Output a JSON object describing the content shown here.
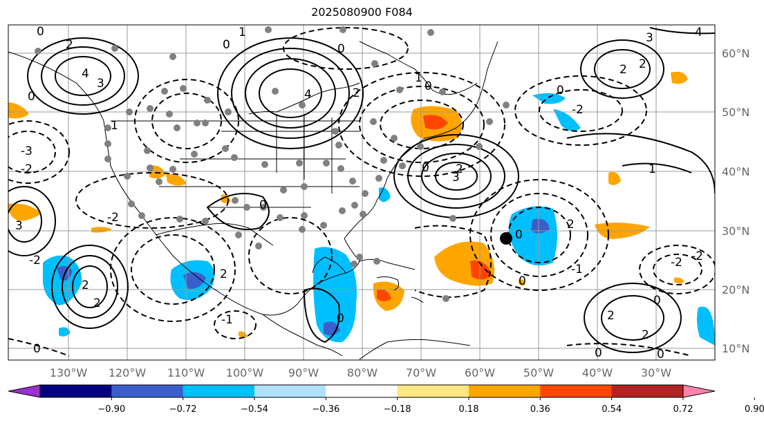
{
  "title": "2025080900 F084",
  "map": {
    "lat_ticks": [
      "60°N",
      "50°N",
      "40°N",
      "30°N",
      "20°N",
      "10°N"
    ],
    "lon_ticks": [
      "130°W",
      "120°W",
      "110°W",
      "100°W",
      "90°W",
      "80°W",
      "70°W",
      "60°W",
      "50°W",
      "40°W",
      "30°W"
    ],
    "contour_labels": [
      "0",
      "1",
      "2",
      "3",
      "4",
      "-1",
      "-2",
      "-3"
    ],
    "marker_color": "#000000",
    "station_color": "#808080"
  },
  "colorbar": {
    "labels": [
      "−0.90",
      "−0.72",
      "−0.54",
      "−0.36",
      "−0.18",
      "0.18",
      "0.36",
      "0.54",
      "0.72",
      "0.90"
    ],
    "colors": [
      "#9b30d0",
      "#000080",
      "#3a5fcd",
      "#00bfff",
      "#b0e2ff",
      "#ffffff",
      "#ffe680",
      "#ffa500",
      "#ff4500",
      "#b22222",
      "#ff82ab"
    ]
  }
}
